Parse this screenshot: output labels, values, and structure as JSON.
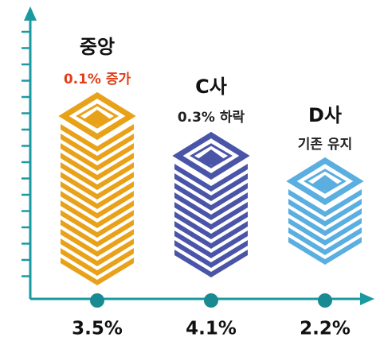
{
  "items": [
    {
      "name": "중앙",
      "change": "0.1% 증가",
      "value": "3.5%",
      "color": "#e8a21a",
      "change_color": "#e0401a"
    },
    {
      "name": "C사",
      "change": "0.3% 하락",
      "value": "4.1%",
      "color": "#4a55a8",
      "change_color": "#222222"
    },
    {
      "name": "D사",
      "change": "기존 유지",
      "value": "2.2%",
      "color": "#5aaee0",
      "change_color": "#222222"
    }
  ]
}
